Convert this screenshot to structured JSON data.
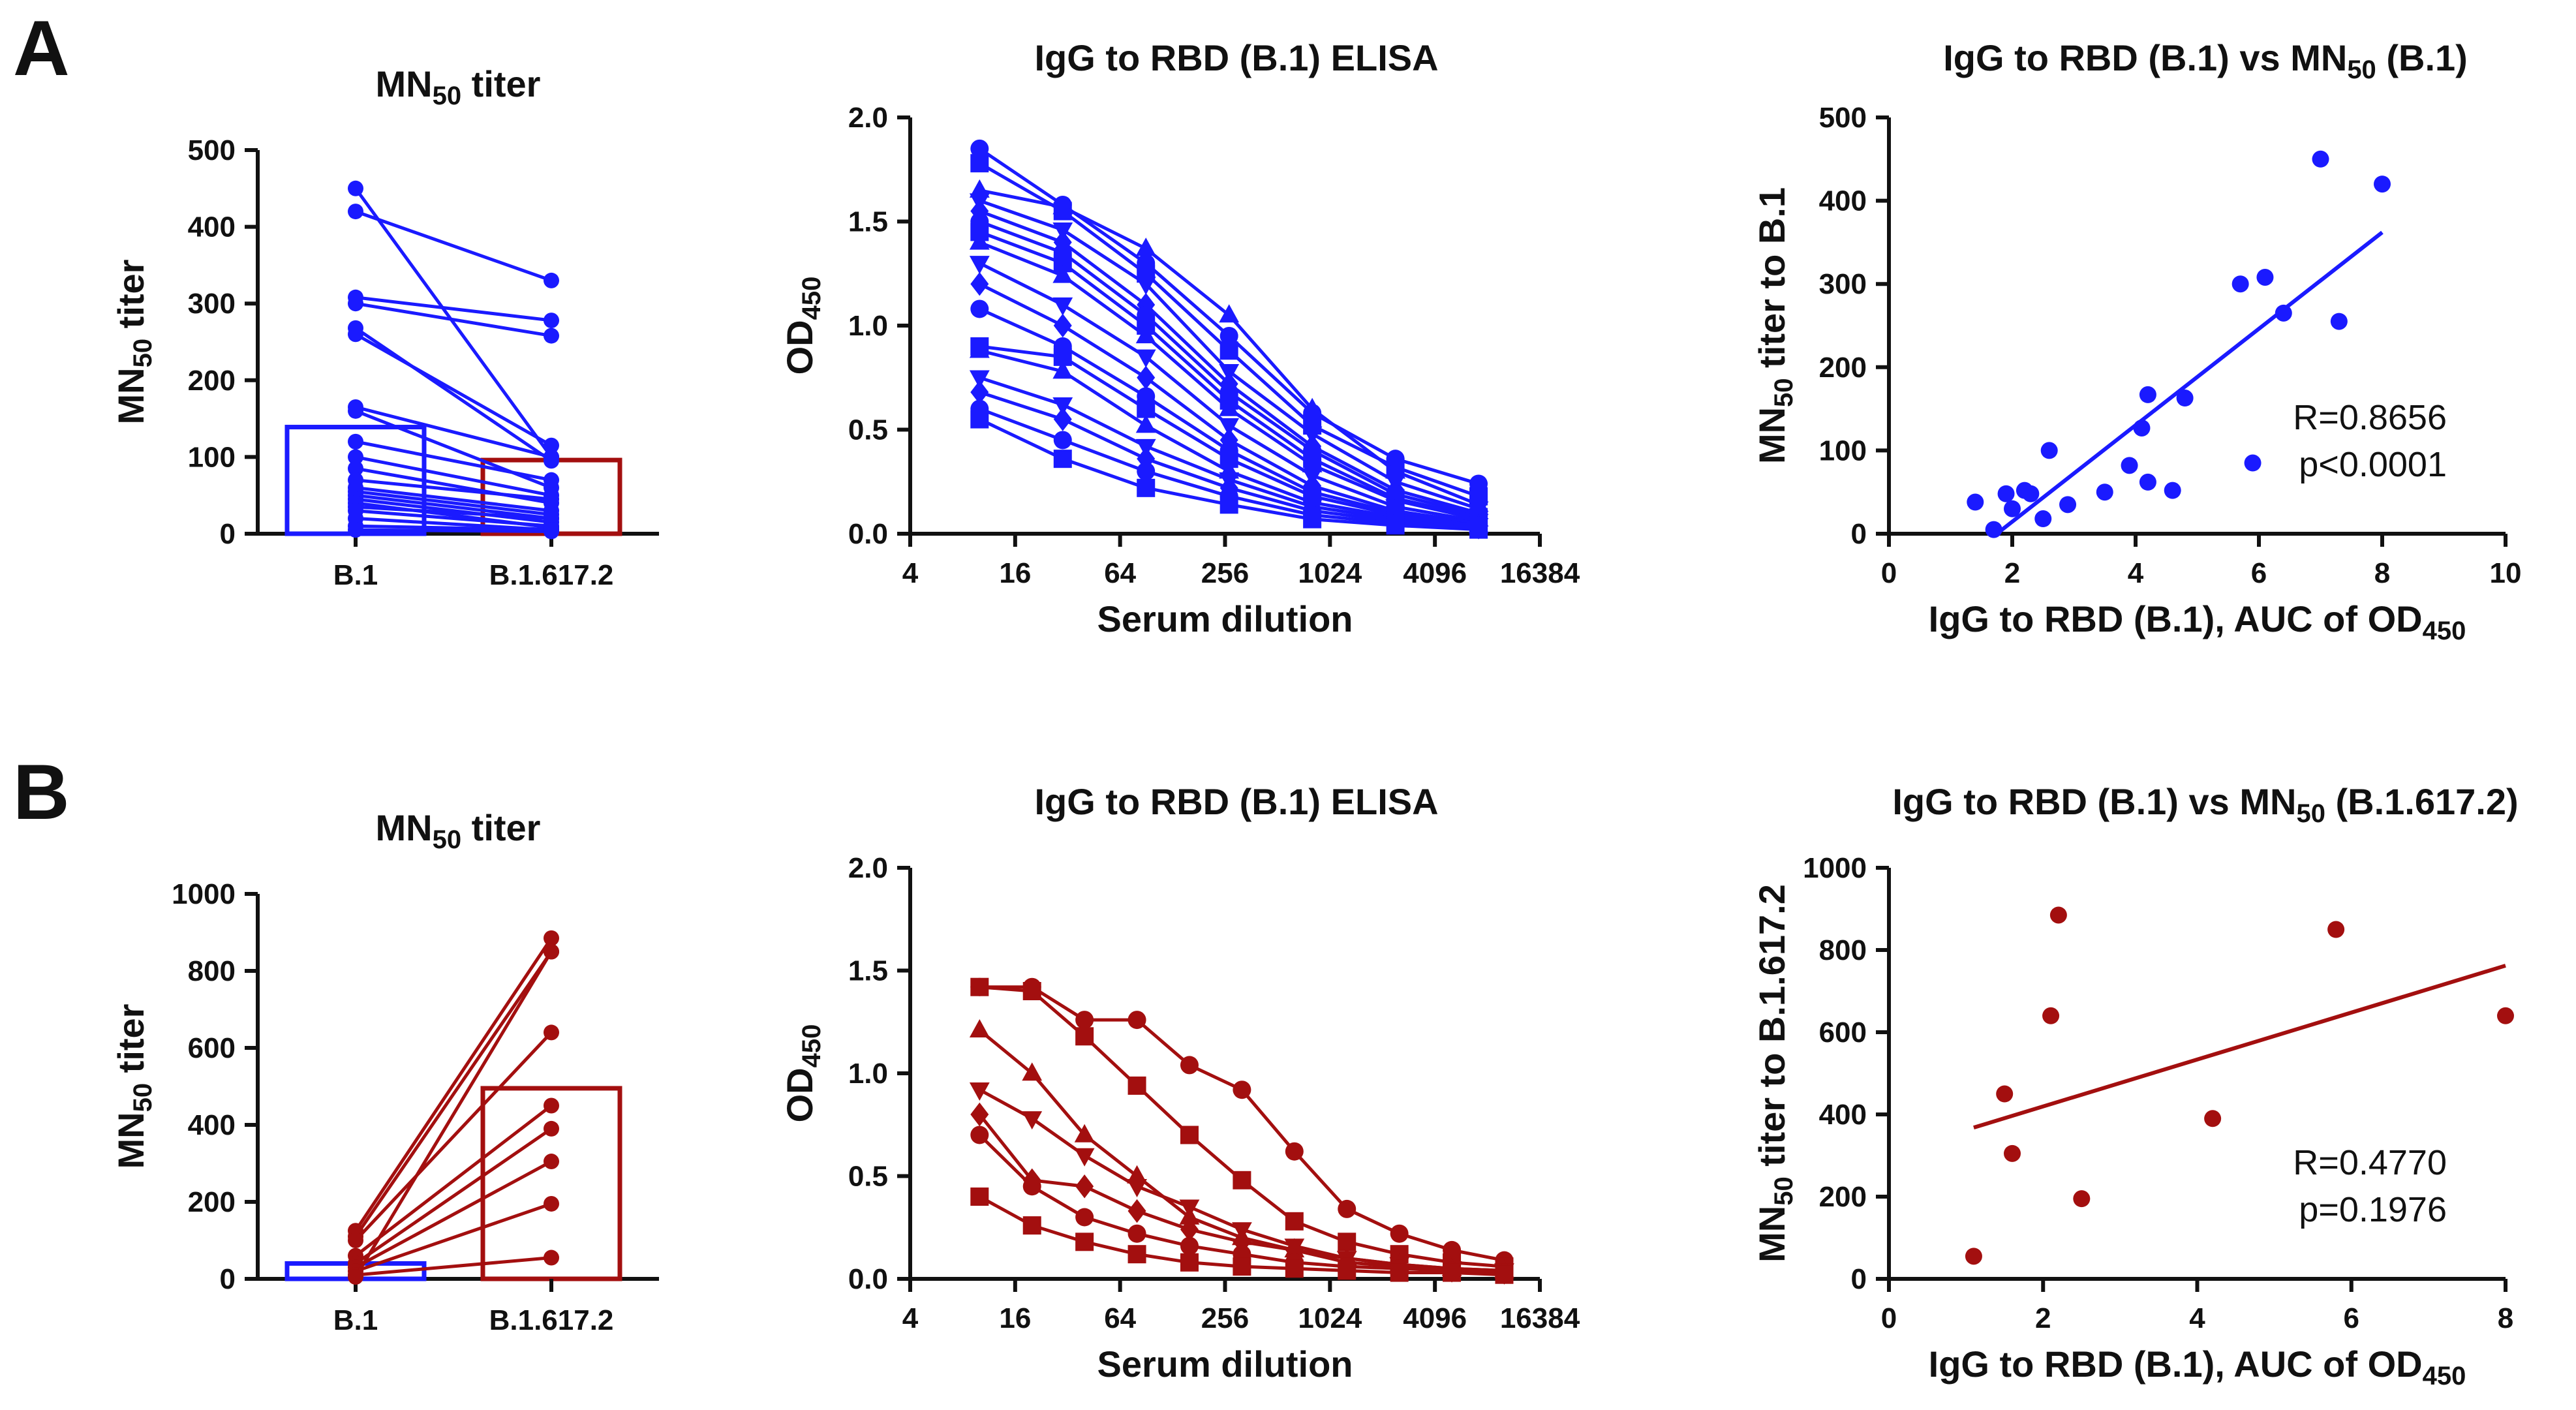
{
  "panels": [
    {
      "label": "A"
    },
    {
      "label": "B"
    }
  ],
  "colors": {
    "blue": "#1a1aff",
    "red": "#a30f0f",
    "axis": "#111111"
  },
  "chart_data": [
    {
      "id": "A1",
      "type": "bar",
      "title": "MN",
      "title_sub": "50",
      "title_rest": " titer",
      "ylabel": "MN",
      "ylabel_sub": "50",
      "ylabel_rest": " titer",
      "categories": [
        "B.1",
        "B.1.617.2"
      ],
      "bar_values": [
        139,
        96
      ],
      "bar_colors": [
        "blue",
        "red"
      ],
      "ylim": [
        0,
        500
      ],
      "yticks": [
        "0",
        "100",
        "200",
        "300",
        "400",
        "500"
      ],
      "pairs_color": "blue",
      "pairs": [
        [
          450,
          100
        ],
        [
          420,
          330
        ],
        [
          308,
          278
        ],
        [
          300,
          258
        ],
        [
          268,
          95
        ],
        [
          260,
          115
        ],
        [
          165,
          100
        ],
        [
          160,
          60
        ],
        [
          120,
          70
        ],
        [
          100,
          50
        ],
        [
          85,
          40
        ],
        [
          70,
          45
        ],
        [
          60,
          30
        ],
        [
          55,
          25
        ],
        [
          50,
          20
        ],
        [
          45,
          15
        ],
        [
          40,
          8
        ],
        [
          35,
          20
        ],
        [
          30,
          10
        ],
        [
          20,
          5
        ],
        [
          10,
          5
        ],
        [
          5,
          3
        ]
      ]
    },
    {
      "id": "A2",
      "type": "line",
      "title": "IgG to RBD (B.1) ELISA",
      "xlabel": "Serum dilution",
      "ylabel": "OD",
      "ylabel_sub": "450",
      "xticks": [
        "4",
        "16",
        "64",
        "256",
        "1024",
        "4096",
        "16384"
      ],
      "yticks": [
        "0.0",
        "0.5",
        "1.0",
        "1.5",
        "2.0"
      ],
      "ylim": [
        0,
        2
      ],
      "xlog2": [
        2,
        14
      ],
      "dilutions": [
        10,
        30,
        90,
        270,
        810,
        2430,
        7290
      ],
      "series_color": "blue",
      "series": [
        [
          1.85,
          1.58,
          1.3,
          0.95,
          0.58,
          0.36,
          0.24
        ],
        [
          1.78,
          1.55,
          1.25,
          0.88,
          0.52,
          0.32,
          0.18
        ],
        [
          1.65,
          1.57,
          1.37,
          1.05,
          0.6,
          0.3,
          0.14
        ],
        [
          1.6,
          1.46,
          1.2,
          0.78,
          0.48,
          0.25,
          0.12
        ],
        [
          1.55,
          1.4,
          1.1,
          0.72,
          0.42,
          0.21,
          0.1
        ],
        [
          1.5,
          1.35,
          1.05,
          0.68,
          0.4,
          0.19,
          0.09
        ],
        [
          1.45,
          1.3,
          1.0,
          0.64,
          0.36,
          0.17,
          0.08
        ],
        [
          1.4,
          1.24,
          0.95,
          0.6,
          0.33,
          0.16,
          0.07
        ],
        [
          1.3,
          1.1,
          0.85,
          0.52,
          0.28,
          0.13,
          0.06
        ],
        [
          1.2,
          1.0,
          0.75,
          0.45,
          0.23,
          0.11,
          0.05
        ],
        [
          1.08,
          0.9,
          0.66,
          0.4,
          0.2,
          0.1,
          0.05
        ],
        [
          0.9,
          0.85,
          0.6,
          0.36,
          0.18,
          0.09,
          0.04
        ],
        [
          0.88,
          0.78,
          0.52,
          0.3,
          0.15,
          0.08,
          0.04
        ],
        [
          0.75,
          0.62,
          0.42,
          0.26,
          0.13,
          0.07,
          0.04
        ],
        [
          0.68,
          0.55,
          0.36,
          0.22,
          0.11,
          0.06,
          0.03
        ],
        [
          0.6,
          0.45,
          0.3,
          0.18,
          0.09,
          0.05,
          0.03
        ],
        [
          0.55,
          0.36,
          0.22,
          0.14,
          0.07,
          0.04,
          0.02
        ]
      ]
    },
    {
      "id": "A3",
      "type": "scatter",
      "title": "IgG to RBD (B.1) vs MN",
      "title_sub": "50",
      "title_rest": " (B.1)",
      "xlabel": "IgG to RBD (B.1), AUC of OD",
      "xlabel_sub": "450",
      "ylabel": "MN",
      "ylabel_sub": "50",
      "ylabel_rest": " titer to B.1",
      "xlim": [
        0,
        10
      ],
      "ylim": [
        0,
        500
      ],
      "xticks": [
        "0",
        "2",
        "4",
        "6",
        "8",
        "10"
      ],
      "yticks": [
        "0",
        "100",
        "200",
        "300",
        "400",
        "500"
      ],
      "points_color": "blue",
      "points": [
        [
          1.4,
          38
        ],
        [
          1.7,
          5
        ],
        [
          1.9,
          48
        ],
        [
          2.0,
          30
        ],
        [
          2.2,
          52
        ],
        [
          2.3,
          48
        ],
        [
          2.5,
          18
        ],
        [
          2.6,
          100
        ],
        [
          2.9,
          35
        ],
        [
          3.5,
          50
        ],
        [
          3.9,
          82
        ],
        [
          4.1,
          127
        ],
        [
          4.2,
          167
        ],
        [
          4.2,
          62
        ],
        [
          4.6,
          52
        ],
        [
          4.8,
          163
        ],
        [
          5.7,
          300
        ],
        [
          5.9,
          85
        ],
        [
          6.1,
          308
        ],
        [
          6.4,
          265
        ],
        [
          7.0,
          450
        ],
        [
          7.3,
          255
        ],
        [
          8.0,
          420
        ]
      ],
      "fit": [
        [
          1.75,
          0
        ],
        [
          8.0,
          362
        ]
      ],
      "stat_r": "R=0.8656",
      "stat_p": "p<0.0001"
    },
    {
      "id": "B1",
      "type": "bar",
      "title": "MN",
      "title_sub": "50",
      "title_rest": " titer",
      "ylabel": "MN",
      "ylabel_sub": "50",
      "ylabel_rest": " titer",
      "categories": [
        "B.1",
        "B.1.617.2"
      ],
      "bar_values": [
        40,
        495
      ],
      "bar_colors": [
        "blue",
        "red"
      ],
      "ylim": [
        0,
        1000
      ],
      "yticks": [
        "0",
        "200",
        "400",
        "600",
        "800",
        "1000"
      ],
      "pairs_color": "red",
      "pairs": [
        [
          125,
          885
        ],
        [
          110,
          850
        ],
        [
          100,
          640
        ],
        [
          60,
          450
        ],
        [
          40,
          390
        ],
        [
          30,
          305
        ],
        [
          20,
          195
        ],
        [
          10,
          55
        ],
        [
          5,
          850
        ]
      ]
    },
    {
      "id": "B2",
      "type": "line",
      "title": "IgG to RBD (B.1) ELISA",
      "xlabel": "Serum dilution",
      "ylabel": "OD",
      "ylabel_sub": "450",
      "xticks": [
        "4",
        "16",
        "64",
        "256",
        "1024",
        "4096",
        "16384"
      ],
      "yticks": [
        "0.0",
        "0.5",
        "1.0",
        "1.5",
        "2.0"
      ],
      "ylim": [
        0,
        2
      ],
      "xlog2": [
        2,
        14
      ],
      "dilutions": [
        10,
        20,
        40,
        80,
        160,
        320,
        640,
        1280,
        2560,
        5120,
        10240
      ],
      "series_color": "red",
      "series": [
        [
          1.42,
          1.42,
          1.26,
          1.26,
          1.04,
          0.92,
          0.62,
          0.34,
          0.22,
          0.14,
          0.09
        ],
        [
          1.42,
          1.4,
          1.18,
          0.94,
          0.7,
          0.48,
          0.28,
          0.18,
          0.12,
          0.08,
          0.06
        ],
        [
          1.21,
          1.0,
          0.7,
          0.5,
          0.3,
          0.2,
          0.14,
          0.1,
          0.07,
          0.05,
          0.04
        ],
        [
          0.92,
          0.78,
          0.6,
          0.45,
          0.35,
          0.24,
          0.16,
          0.1,
          0.07,
          0.05,
          0.04
        ],
        [
          0.8,
          0.48,
          0.45,
          0.33,
          0.24,
          0.18,
          0.14,
          0.08,
          0.06,
          0.04,
          0.03
        ],
        [
          0.7,
          0.45,
          0.3,
          0.22,
          0.16,
          0.12,
          0.08,
          0.06,
          0.05,
          0.04,
          0.03
        ],
        [
          0.4,
          0.26,
          0.18,
          0.12,
          0.08,
          0.06,
          0.05,
          0.04,
          0.03,
          0.03,
          0.02
        ]
      ]
    },
    {
      "id": "B3",
      "type": "scatter",
      "title": "IgG to RBD (B.1) vs MN",
      "title_sub": "50",
      "title_rest": " (B.1.617.2)",
      "xlabel": "IgG to RBD (B.1), AUC of OD",
      "xlabel_sub": "450",
      "ylabel": "MN",
      "ylabel_sub": "50",
      "ylabel_rest": " titer to B.1.617.2",
      "xlim": [
        0,
        8
      ],
      "ylim": [
        0,
        1000
      ],
      "xticks": [
        "0",
        "2",
        "4",
        "6",
        "8"
      ],
      "yticks": [
        "0",
        "200",
        "400",
        "600",
        "800",
        "1000"
      ],
      "points_color": "red",
      "points": [
        [
          1.1,
          55
        ],
        [
          1.5,
          450
        ],
        [
          1.6,
          305
        ],
        [
          2.1,
          640
        ],
        [
          2.2,
          885
        ],
        [
          2.5,
          195
        ],
        [
          4.2,
          390
        ],
        [
          5.8,
          850
        ],
        [
          8.0,
          640
        ]
      ],
      "fit": [
        [
          1.1,
          368
        ],
        [
          8.0,
          762
        ]
      ],
      "stat_r": "R=0.4770",
      "stat_p": "p=0.1976"
    }
  ]
}
